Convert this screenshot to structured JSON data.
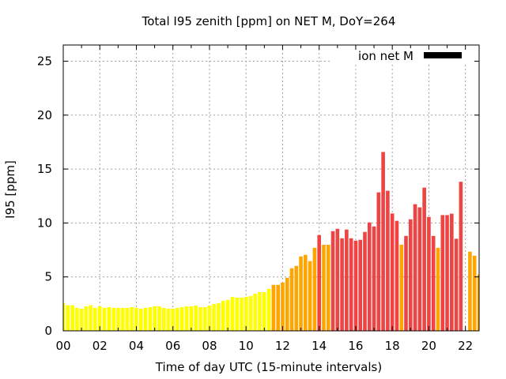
{
  "chart_data": {
    "type": "bar",
    "title": "Total I95 zenith [ppm] on NET M, DoY=264",
    "xlabel": "Time of day UTC (15-minute intervals)",
    "ylabel": "I95 [ppm]",
    "x_unit": "hours UTC",
    "interval_minutes": 15,
    "x": [
      0,
      0.25,
      0.5,
      0.75,
      1,
      1.25,
      1.5,
      1.75,
      2,
      2.25,
      2.5,
      2.75,
      3,
      3.25,
      3.5,
      3.75,
      4,
      4.25,
      4.5,
      4.75,
      5,
      5.25,
      5.5,
      5.75,
      6,
      6.25,
      6.5,
      6.75,
      7,
      7.25,
      7.5,
      7.75,
      8,
      8.25,
      8.5,
      8.75,
      9,
      9.25,
      9.5,
      9.75,
      10,
      10.25,
      10.5,
      10.75,
      11,
      11.25,
      11.5,
      11.75,
      12,
      12.25,
      12.5,
      12.75,
      13,
      13.25,
      13.5,
      13.75,
      14,
      14.25,
      14.5,
      14.75,
      15,
      15.25,
      15.5,
      15.75,
      16,
      16.25,
      16.5,
      16.75,
      17,
      17.25,
      17.5,
      17.75,
      18,
      18.25,
      18.5,
      18.75,
      19,
      19.25,
      19.5,
      19.75,
      20,
      20.25,
      20.5,
      20.75,
      21,
      21.25,
      21.5,
      21.75,
      22,
      22.25,
      22.5,
      22.75
    ],
    "values": [
      2.57,
      2.37,
      2.37,
      2.13,
      2.05,
      2.27,
      2.37,
      2.13,
      2.27,
      2.13,
      2.2,
      2.13,
      2.13,
      2.13,
      2.13,
      2.2,
      2.13,
      2.05,
      2.13,
      2.2,
      2.27,
      2.27,
      2.13,
      2.05,
      2.05,
      2.13,
      2.2,
      2.27,
      2.27,
      2.35,
      2.2,
      2.2,
      2.35,
      2.49,
      2.57,
      2.79,
      2.86,
      3.15,
      3.08,
      3.08,
      3.15,
      3.23,
      3.45,
      3.59,
      3.59,
      3.89,
      4.26,
      4.26,
      4.48,
      4.92,
      5.8,
      6.02,
      6.9,
      7.04,
      6.46,
      7.7,
      8.88,
      7.98,
      7.98,
      9.24,
      9.46,
      8.58,
      9.39,
      8.58,
      8.36,
      8.44,
      9.17,
      10.05,
      9.68,
      12.84,
      16.58,
      12.99,
      10.88,
      10.2,
      7.98,
      8.8,
      10.34,
      11.74,
      11.45,
      13.28,
      10.56,
      8.8,
      7.7,
      10.73,
      10.73,
      10.86,
      8.54,
      13.82,
      null,
      7.34,
      6.97,
      5.21
    ],
    "xlim": [
      0,
      22.75
    ],
    "ylim": [
      0,
      26.5
    ],
    "xticks": {
      "values": [
        0,
        2,
        4,
        6,
        8,
        10,
        12,
        14,
        16,
        18,
        20,
        22
      ],
      "labels": [
        "00",
        "02",
        "04",
        "06",
        "08",
        "10",
        "12",
        "14",
        "16",
        "18",
        "20",
        "22"
      ],
      "minor_step": 1
    },
    "yticks": {
      "values": [
        0,
        5,
        10,
        15,
        20,
        25
      ],
      "labels": [
        "0",
        "5",
        "10",
        "15",
        "20",
        "25"
      ]
    },
    "grid": true,
    "legend": {
      "label": "ion net M",
      "position": "top-right",
      "color": "#000000"
    },
    "color_levels": [
      {
        "name": "low",
        "below": 4,
        "color": "#ffff00"
      },
      {
        "name": "moderate",
        "below": 8,
        "color": "#ffa500"
      },
      {
        "name": "high",
        "below": null,
        "color": "#ef4444"
      }
    ]
  }
}
